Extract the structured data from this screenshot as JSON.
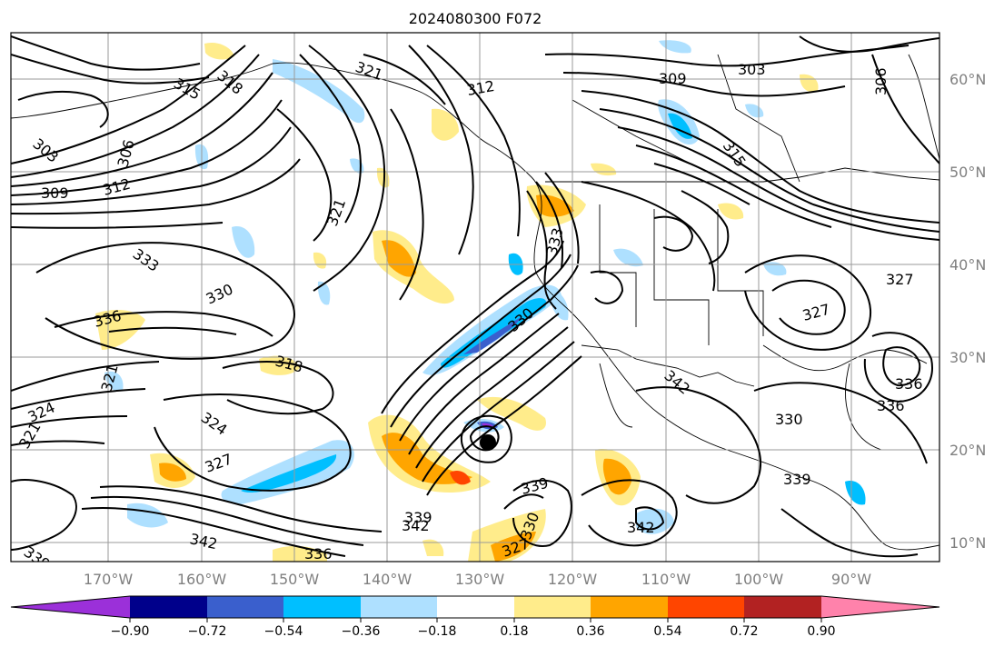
{
  "title": "2024080300 F072",
  "latitude_labels": [
    "60°N",
    "50°N",
    "40°N",
    "30°N",
    "20°N",
    "10°N"
  ],
  "longitude_labels": [
    "170°W",
    "160°W",
    "150°W",
    "140°W",
    "130°W",
    "120°W",
    "110°W",
    "100°W",
    "90°W"
  ],
  "colorbar": {
    "tick_labels": [
      "−0.90",
      "−0.72",
      "−0.54",
      "−0.36",
      "−0.18",
      "0.18",
      "0.36",
      "0.54",
      "0.72",
      "0.90"
    ],
    "colors": [
      "#9b30d9",
      "#00008b",
      "#3a5fcd",
      "#00bfff",
      "#aee0ff",
      "#ffffff",
      "#ffec8b",
      "#ffa500",
      "#ff4500",
      "#b22222",
      "#ff82ab"
    ]
  },
  "contour_labels": [
    "303",
    "306",
    "309",
    "312",
    "315",
    "318",
    "321",
    "324",
    "327",
    "330",
    "333",
    "336",
    "339",
    "342",
    "342",
    "339",
    "336",
    "327",
    "330",
    "321",
    "318",
    "315",
    "312",
    "309",
    "306",
    "303",
    "327",
    "324",
    "321",
    "330",
    "336",
    "339",
    "336",
    "333",
    "330",
    "327",
    "342",
    "339",
    "342",
    "321"
  ],
  "marker": "storm-center-dot"
}
